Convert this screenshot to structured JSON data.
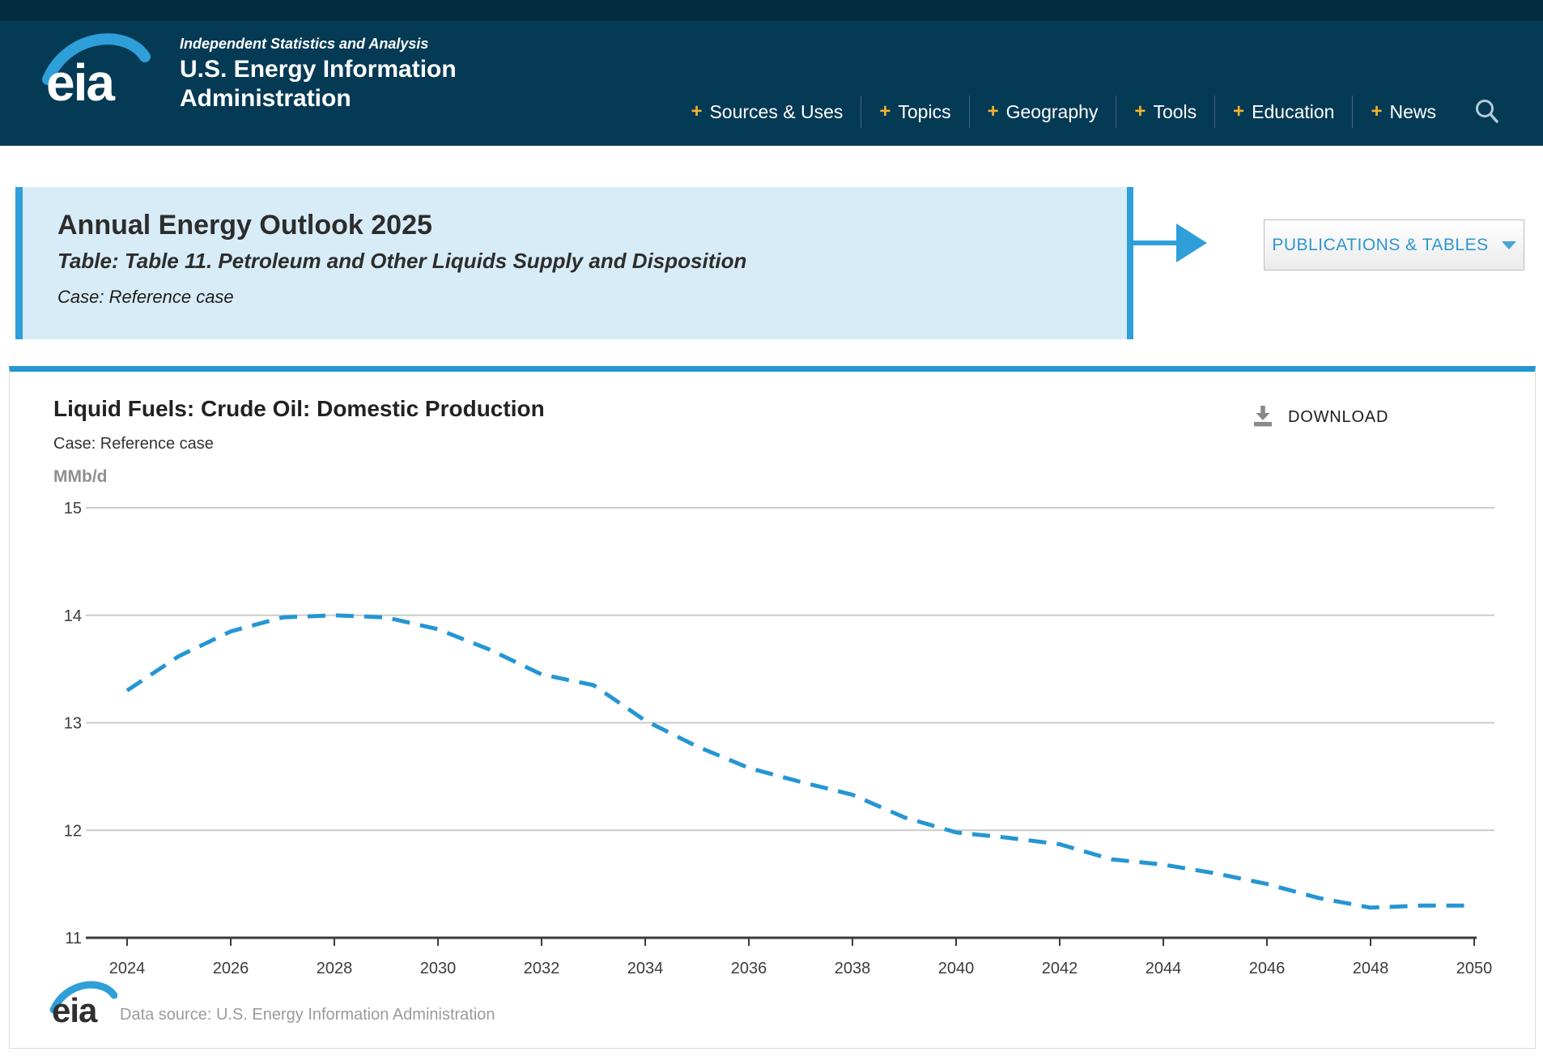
{
  "header": {
    "logo_text": "eia",
    "tagline": "Independent Statistics and Analysis",
    "org_line1": "U.S. Energy Information",
    "org_line2": "Administration",
    "nav": [
      "Sources & Uses",
      "Topics",
      "Geography",
      "Tools",
      "Education",
      "News"
    ]
  },
  "icons": {
    "plus": "+",
    "search": "magnifier",
    "download": "tray-arrow-down",
    "caret": "triangle-down"
  },
  "banner": {
    "title": "Annual Energy Outlook 2025",
    "subtitle": "Table: Table 11. Petroleum and Other Liquids Supply and Disposition",
    "case_line": "Case: Reference case",
    "button_label": "PUBLICATIONS & TABLES"
  },
  "chart_panel": {
    "title": "Liquid Fuels: Crude Oil: Domestic Production",
    "subtitle": "Case: Reference case",
    "unit_label": "MMb/d",
    "download_label": "DOWNLOAD",
    "footer_logo_text": "eia",
    "footer_source": "Data source: U.S. Energy Information Administration"
  },
  "colors": {
    "header_bg": "#053a55",
    "header_topstrip": "#032c40",
    "nav_plus_gold": "#f2b12e",
    "accent_blue": "#2596d3",
    "banner_bg": "#d8ecf7",
    "banner_border": "#2e9fd9",
    "grid_gray": "#cbcbcb",
    "axis_dark": "#3b3b3b",
    "muted_text": "#9b9b9b"
  },
  "chart_data": {
    "type": "line",
    "title": "Liquid Fuels: Crude Oil: Domestic Production",
    "subtitle": "Case: Reference case",
    "xlabel": "",
    "ylabel": "MMb/d",
    "ylim": [
      11,
      15
    ],
    "yticks": [
      11,
      12,
      13,
      14,
      15
    ],
    "xticks": [
      2024,
      2026,
      2028,
      2030,
      2032,
      2034,
      2036,
      2038,
      2040,
      2042,
      2044,
      2046,
      2048,
      2050
    ],
    "grid": true,
    "legend_position": "none",
    "x": [
      2024,
      2025,
      2026,
      2027,
      2028,
      2029,
      2030,
      2031,
      2032,
      2033,
      2034,
      2035,
      2036,
      2037,
      2038,
      2039,
      2040,
      2041,
      2042,
      2043,
      2044,
      2045,
      2046,
      2047,
      2048,
      2049,
      2050
    ],
    "series": [
      {
        "name": "Reference case",
        "style": "dashed",
        "color": "#2596d3",
        "values": [
          13.3,
          13.62,
          13.85,
          13.98,
          14.0,
          13.98,
          13.87,
          13.68,
          13.45,
          13.35,
          13.02,
          12.78,
          12.58,
          12.45,
          12.33,
          12.12,
          11.98,
          11.93,
          11.87,
          11.73,
          11.68,
          11.6,
          11.5,
          11.37,
          11.28,
          11.3,
          11.3
        ]
      }
    ]
  }
}
